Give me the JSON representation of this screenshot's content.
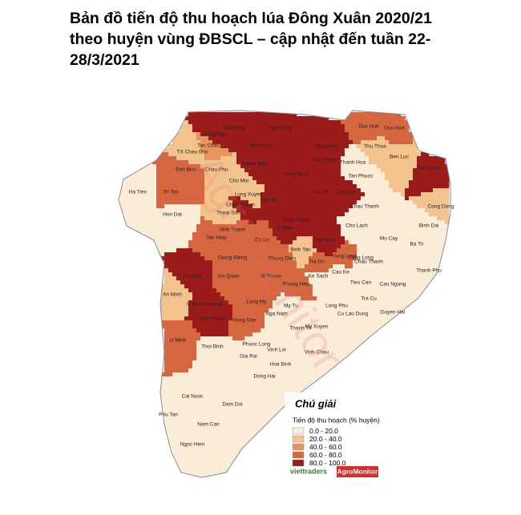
{
  "title": "Bản đồ tiến độ thu hoạch lúa Đông Xuân 2020/21 theo huyện vùng ĐBSCL – cập nhật đến tuần 22-28/3/2021",
  "watermark": "AgroMonitor",
  "districts": [
    "Tan Hong",
    "Tan Hung",
    "Hong Ngu",
    "Tan Chau",
    "TX Chau Doc",
    "Tam Nong",
    "Thanh Binh",
    "Moc Hoa",
    "Duc Hue",
    "Duc Hoa",
    "Thu Thua",
    "Tan Thanh",
    "Thanh Hoa",
    "Ben Luc",
    "Can Giuoc",
    "Tinh Bien",
    "Chau Phu",
    "Thap Muoi",
    "Cho Moi",
    "Tri Ton",
    "Ha Tien",
    "Lap Vo",
    "Cai Be",
    "Cai Lay",
    "Tan Phuoc",
    "Long Xuyen",
    "Chau Thanh",
    "Thoai Son",
    "Hon Dat",
    "Vinh Thanh",
    "Tan Hiep",
    "Co Do",
    "O Mon",
    "Cho Lach",
    "Mo Cay",
    "Ba Tri",
    "Binh Dai",
    "Cong Dong",
    "Chau Thanh",
    "Tam Binh",
    "Binh Tan",
    "Vung Liem",
    "Tra On",
    "Phong Dien",
    "Giong Rieng",
    "Go Quao",
    "Vi Thanh",
    "Phung Hiep",
    "Ke Sach",
    "Cau Ke",
    "Chau Thanh",
    "Tieu Can",
    "Cang Long",
    "Cau Ngang",
    "Tra Cu",
    "Thanh Phu",
    "Duyen Hai",
    "An Bien",
    "An Minh",
    "U Minh Thuong",
    "Vinh Thuan",
    "Long My",
    "My Tu",
    "Nga Nam",
    "Hong Dan",
    "My Xuyen",
    "Cu Lao Dung",
    "Long Phu",
    "Thanh Tri",
    "U Minh",
    "Thoi Binh",
    "Phuoc Long",
    "Gia Rai",
    "Vinh Loi",
    "Vinh Chau",
    "Hoa Binh",
    "Dong Hai",
    "Cai Nuoc",
    "Dam Doi",
    "Phu Tan",
    "Nam Can",
    "Ngoc Hien",
    "Chau Thanh"
  ],
  "legend": {
    "title": "Chú giải",
    "subtitle": "Tiến độ thu hoạch (% huyện)",
    "items": [
      {
        "label": "0.0 - 20.0",
        "color": "#fbecd8"
      },
      {
        "label": "20.0 - 40.0",
        "color": "#f3c38e"
      },
      {
        "label": "40.0 - 60.0",
        "color": "#e8945f"
      },
      {
        "label": "60.0 - 80.0",
        "color": "#d5663f"
      },
      {
        "label": "80.0 - 100.0",
        "color": "#9b1b1b"
      }
    ]
  },
  "logos": [
    "viettraders",
    "AgroMonitor"
  ]
}
